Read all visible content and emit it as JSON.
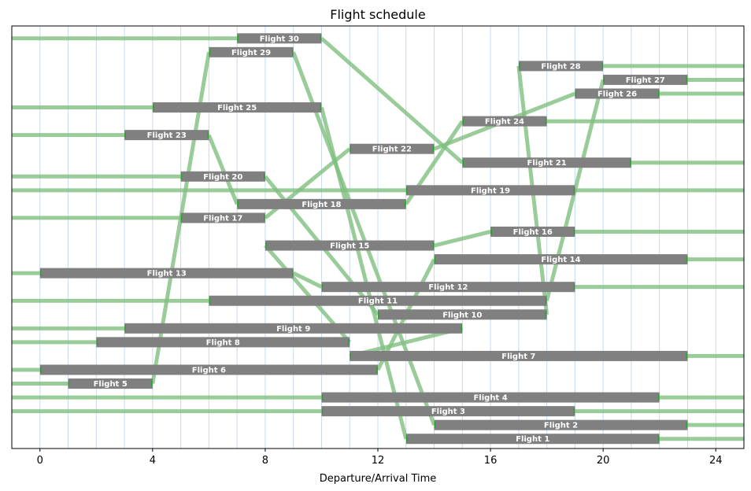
{
  "chart_data": {
    "type": "gantt",
    "title": "Flight schedule",
    "xlabel": "Departure/Arrival Time",
    "ylabel": "",
    "xlim": [
      -1,
      25
    ],
    "xticks": [
      0,
      4,
      8,
      12,
      16,
      20,
      24
    ],
    "grid": "vertical, every hour",
    "colors": {
      "bar": "#808080",
      "connector": "#7fbf7f",
      "grid": "#c6dbef",
      "tick_mark": "#2ca02c"
    },
    "flights": [
      {
        "name": "Flight 1",
        "dep": 13,
        "arr": 22
      },
      {
        "name": "Flight 2",
        "dep": 14,
        "arr": 23
      },
      {
        "name": "Flight 3",
        "dep": 10,
        "arr": 19
      },
      {
        "name": "Flight 4",
        "dep": 10,
        "arr": 22
      },
      {
        "name": "Flight 5",
        "dep": 1,
        "arr": 4
      },
      {
        "name": "Flight 6",
        "dep": 0,
        "arr": 12
      },
      {
        "name": "Flight 7",
        "dep": 11,
        "arr": 23
      },
      {
        "name": "Flight 8",
        "dep": 2,
        "arr": 11
      },
      {
        "name": "Flight 9",
        "dep": 3,
        "arr": 15
      },
      {
        "name": "Flight 10",
        "dep": 12,
        "arr": 18
      },
      {
        "name": "Flight 11",
        "dep": 6,
        "arr": 18
      },
      {
        "name": "Flight 12",
        "dep": 10,
        "arr": 19
      },
      {
        "name": "Flight 13",
        "dep": 0,
        "arr": 9
      },
      {
        "name": "Flight 14",
        "dep": 14,
        "arr": 23
      },
      {
        "name": "Flight 15",
        "dep": 8,
        "arr": 14
      },
      {
        "name": "Flight 16",
        "dep": 16,
        "arr": 19
      },
      {
        "name": "Flight 17",
        "dep": 5,
        "arr": 8
      },
      {
        "name": "Flight 18",
        "dep": 7,
        "arr": 13
      },
      {
        "name": "Flight 19",
        "dep": 13,
        "arr": 19
      },
      {
        "name": "Flight 20",
        "dep": 5,
        "arr": 8
      },
      {
        "name": "Flight 21",
        "dep": 15,
        "arr": 21
      },
      {
        "name": "Flight 22",
        "dep": 11,
        "arr": 14
      },
      {
        "name": "Flight 23",
        "dep": 3,
        "arr": 6
      },
      {
        "name": "Flight 24",
        "dep": 15,
        "arr": 18
      },
      {
        "name": "Flight 25",
        "dep": 4,
        "arr": 10
      },
      {
        "name": "Flight 26",
        "dep": 19,
        "arr": 22
      },
      {
        "name": "Flight 27",
        "dep": 20,
        "arr": 23
      },
      {
        "name": "Flight 28",
        "dep": 17,
        "arr": 20
      },
      {
        "name": "Flight 29",
        "dep": 6,
        "arr": 9
      },
      {
        "name": "Flight 30",
        "dep": 7,
        "arr": 10
      }
    ],
    "connections": [
      {
        "from": "Flight 5",
        "to": "Flight 29"
      },
      {
        "from": "Flight 29",
        "to": "Flight 2"
      },
      {
        "from": "Flight 2",
        "to": "end"
      },
      {
        "from": "start",
        "to": "Flight 30"
      },
      {
        "from": "Flight 30",
        "to": "Flight 21"
      },
      {
        "from": "Flight 21",
        "to": "end"
      },
      {
        "from": "start",
        "to": "Flight 25"
      },
      {
        "from": "Flight 25",
        "to": "Flight 1"
      },
      {
        "from": "Flight 1",
        "to": "end"
      },
      {
        "from": "start",
        "to": "Flight 23"
      },
      {
        "from": "Flight 23",
        "to": "Flight 18"
      },
      {
        "from": "Flight 18",
        "to": "Flight 24"
      },
      {
        "from": "Flight 24",
        "to": "end"
      },
      {
        "from": "start",
        "to": "Flight 20"
      },
      {
        "from": "Flight 20",
        "to": "Flight 10"
      },
      {
        "from": "Flight 10",
        "to": "Flight 28"
      },
      {
        "from": "Flight 28",
        "to": "end"
      },
      {
        "from": "start",
        "to": "Flight 19"
      },
      {
        "from": "Flight 19",
        "to": "end"
      },
      {
        "from": "start",
        "to": "Flight 17"
      },
      {
        "from": "Flight 17",
        "to": "Flight 22"
      },
      {
        "from": "Flight 22",
        "to": "Flight 26"
      },
      {
        "from": "Flight 26",
        "to": "end"
      },
      {
        "from": "start",
        "to": "Flight 13"
      },
      {
        "from": "Flight 13",
        "to": "Flight 12"
      },
      {
        "from": "Flight 12",
        "to": "end"
      },
      {
        "from": "start",
        "to": "Flight 11"
      },
      {
        "from": "Flight 11",
        "to": "Flight 27"
      },
      {
        "from": "Flight 27",
        "to": "end"
      },
      {
        "from": "start",
        "to": "Flight 9"
      },
      {
        "from": "Flight 9",
        "to": "Flight 7"
      },
      {
        "from": "Flight 7",
        "to": "end"
      },
      {
        "from": "start",
        "to": "Flight 8"
      },
      {
        "from": "Flight 8",
        "to": "Flight 15"
      },
      {
        "from": "Flight 15",
        "to": "Flight 16"
      },
      {
        "from": "Flight 16",
        "to": "end"
      },
      {
        "from": "start",
        "to": "Flight 6"
      },
      {
        "from": "Flight 6",
        "to": "Flight 14"
      },
      {
        "from": "Flight 14",
        "to": "end"
      },
      {
        "from": "start",
        "to": "Flight 5"
      },
      {
        "from": "start",
        "to": "Flight 4"
      },
      {
        "from": "Flight 4",
        "to": "end"
      },
      {
        "from": "start",
        "to": "Flight 3"
      },
      {
        "from": "Flight 3",
        "to": "end"
      }
    ]
  }
}
